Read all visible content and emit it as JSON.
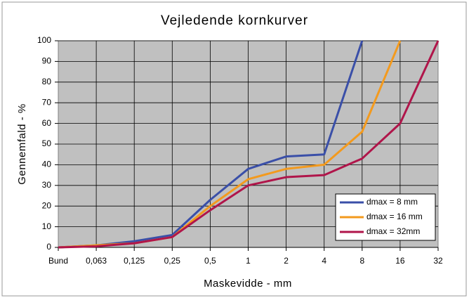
{
  "chart_data": {
    "type": "line",
    "title": "Vejledende kornkurver",
    "x_label": "Maskevidde - mm",
    "y_label": "Gennemfald - %",
    "categories": [
      "Bund",
      "0,063",
      "0,125",
      "0,25",
      "0,5",
      "1",
      "2",
      "4",
      "8",
      "16",
      "32"
    ],
    "series": [
      {
        "name": "dmax = 8 mm",
        "color": "#3a4fa8",
        "values": [
          0,
          1,
          3,
          6,
          23,
          38,
          44,
          45,
          100,
          null,
          null
        ]
      },
      {
        "name": "dmax = 16 mm",
        "color": "#f39a1e",
        "values": [
          0,
          1,
          2,
          5,
          20,
          33,
          38,
          40,
          56,
          100,
          null
        ]
      },
      {
        "name": "dmax = 32mm",
        "color": "#b0154a",
        "values": [
          0,
          0.5,
          2,
          5,
          18,
          30,
          34,
          35,
          43,
          60,
          100
        ]
      }
    ],
    "ylim": [
      0,
      100
    ],
    "yticks": [
      0,
      10,
      20,
      30,
      40,
      50,
      60,
      70,
      80,
      90,
      100
    ],
    "grid": true,
    "legend": "lower right"
  }
}
